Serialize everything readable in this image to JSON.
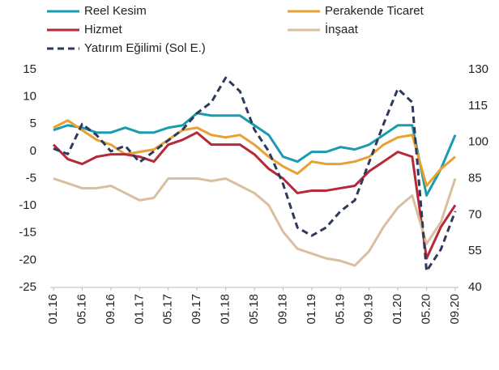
{
  "chart_data": {
    "type": "line",
    "categories": [
      "01.16",
      null,
      "05.16",
      null,
      "09.16",
      null,
      "01.17",
      null,
      "05.17",
      null,
      "09.17",
      null,
      "01.18",
      null,
      "05.18",
      null,
      "09.18",
      null,
      "01.19",
      null,
      "05.19",
      null,
      "09.19",
      null,
      "01.20",
      null,
      "05.20",
      null,
      "09.20"
    ],
    "series": [
      {
        "name": "Reel Kesim",
        "color": "#1a9bb0",
        "axis": "y2",
        "values": [
          105,
          107,
          106,
          104,
          104,
          106,
          104,
          104,
          106,
          107,
          112,
          111,
          111,
          111,
          107,
          103,
          94,
          92,
          96,
          96,
          98,
          97,
          99,
          103,
          107,
          107,
          78,
          89,
          103
        ]
      },
      {
        "name": "Perakende Ticaret",
        "color": "#e8a030",
        "axis": "y2",
        "values": [
          106,
          109,
          105,
          101,
          99,
          95,
          96,
          97,
          101,
          105,
          106,
          103,
          102,
          103,
          99,
          94,
          90,
          87,
          92,
          91,
          91,
          92,
          94,
          99,
          102,
          103,
          82,
          89,
          94
        ]
      },
      {
        "name": "Hizmet",
        "color": "#b5293a",
        "axis": "y2",
        "values": [
          99,
          93,
          91,
          94,
          95,
          95,
          94,
          92,
          99,
          101,
          104,
          99,
          99,
          99,
          95,
          89,
          85,
          79,
          80,
          80,
          81,
          82,
          88,
          92,
          96,
          94,
          52,
          65,
          74
        ]
      },
      {
        "name": "İnşaat",
        "color": "#d9bfa0",
        "axis": "y2",
        "values": [
          85,
          83,
          81,
          81,
          82,
          79,
          76,
          77,
          85,
          85,
          85,
          84,
          85,
          82,
          79,
          74,
          63,
          56,
          54,
          52,
          51,
          49,
          55,
          65,
          73,
          78,
          58,
          67,
          85
        ]
      },
      {
        "name": "Yatırım Eğilimi (Sol E.)",
        "color": "#2e3a59",
        "dashed": true,
        "values": [
          0.5,
          -0.5,
          5,
          3,
          0,
          1,
          -2,
          0,
          2,
          4,
          7,
          9,
          13.5,
          11,
          4,
          0,
          -6,
          -14,
          -15.5,
          -14,
          -11,
          -9,
          -2,
          5,
          11.5,
          9,
          -22,
          -18,
          -11
        ]
      }
    ],
    "ylim": [
      -25,
      15
    ],
    "yticks": [
      -25,
      -20,
      -15,
      -10,
      -5,
      0,
      5,
      10,
      15
    ],
    "y2lim": [
      40,
      130
    ],
    "y2ticks": [
      40,
      55,
      70,
      85,
      100,
      115,
      130
    ],
    "grid": false
  }
}
